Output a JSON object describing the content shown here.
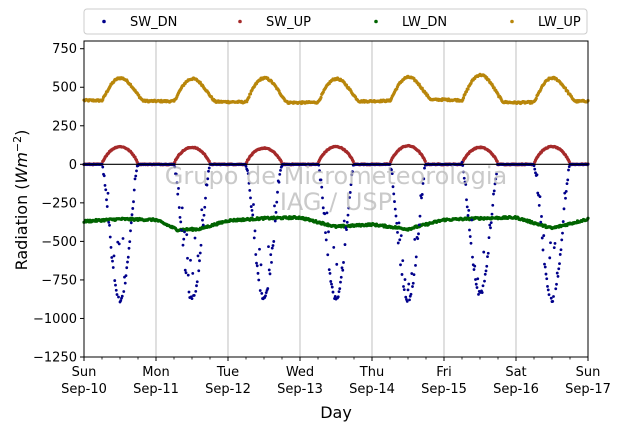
{
  "chart_data": {
    "type": "scatter",
    "title": "",
    "xlabel": "Day",
    "ylabel": "Radiation (Wm⁻²)",
    "ylabel_parts": {
      "pre": "Radiation (",
      "italic": "Wm",
      "sup": "−2",
      "post": ")"
    },
    "ylim": [
      -1250,
      800
    ],
    "xlim": [
      0,
      7
    ],
    "yticks": [
      750,
      500,
      250,
      0,
      -250,
      -500,
      -750,
      -1000,
      -1250
    ],
    "ytick_labels": [
      "750",
      "500",
      "250",
      "0",
      "−250",
      "−500",
      "−750",
      "−1000",
      "−1250"
    ],
    "xticks": [
      0,
      1,
      2,
      3,
      4,
      5,
      6,
      7
    ],
    "xtick_labels": [
      [
        "Sun",
        "Sep-10"
      ],
      [
        "Mon",
        "Sep-11"
      ],
      [
        "Tue",
        "Sep-12"
      ],
      [
        "Wed",
        "Sep-13"
      ],
      [
        "Thu",
        "Sep-14"
      ],
      [
        "Fri",
        "Sep-15"
      ],
      [
        "Sat",
        "Sep-16"
      ],
      [
        "Sun",
        "Sep-17"
      ]
    ],
    "grid": "vertical",
    "zero_line": true,
    "legend_placement": "top (above plot, single row)",
    "watermark": [
      "Grupo de Micrometeorologia",
      "IAG / USP"
    ],
    "series": [
      {
        "name": "SW_DN",
        "color": "#00008b",
        "daily_cycle": {
          "sunrise": 0.25,
          "sunset": 0.75,
          "peak": -880,
          "night": 0
        },
        "daily_peaks": [
          -880,
          -875,
          -870,
          -870,
          -890,
          -840,
          -880
        ]
      },
      {
        "name": "SW_UP",
        "color": "#a52a2a",
        "daily_cycle": {
          "sunrise": 0.25,
          "sunset": 0.75,
          "peak": 110,
          "night": 0
        },
        "daily_peaks": [
          115,
          110,
          105,
          115,
          120,
          110,
          115
        ]
      },
      {
        "name": "LW_DN",
        "color": "#006400",
        "daily_cycle": {
          "base": -360,
          "min": -415
        },
        "daily_points": [
          [
            0,
            -370
          ],
          [
            0.5,
            -355
          ],
          [
            1.0,
            -360
          ],
          [
            1.3,
            -425
          ],
          [
            1.6,
            -420
          ],
          [
            2.0,
            -365
          ],
          [
            2.5,
            -350
          ],
          [
            3.0,
            -345
          ],
          [
            3.5,
            -405
          ],
          [
            4.0,
            -390
          ],
          [
            4.5,
            -420
          ],
          [
            5.0,
            -360
          ],
          [
            5.5,
            -350
          ],
          [
            6.0,
            -345
          ],
          [
            6.5,
            -415
          ],
          [
            7.0,
            -355
          ]
        ]
      },
      {
        "name": "LW_UP",
        "color": "#b8860b",
        "daily_cycle": {
          "sunrise": 0.25,
          "sunset": 0.75
        },
        "night_levels": [
          415,
          410,
          405,
          400,
          410,
          420,
          400,
          410
        ],
        "daily_peaks": [
          560,
          555,
          560,
          555,
          565,
          580,
          560
        ]
      }
    ]
  }
}
